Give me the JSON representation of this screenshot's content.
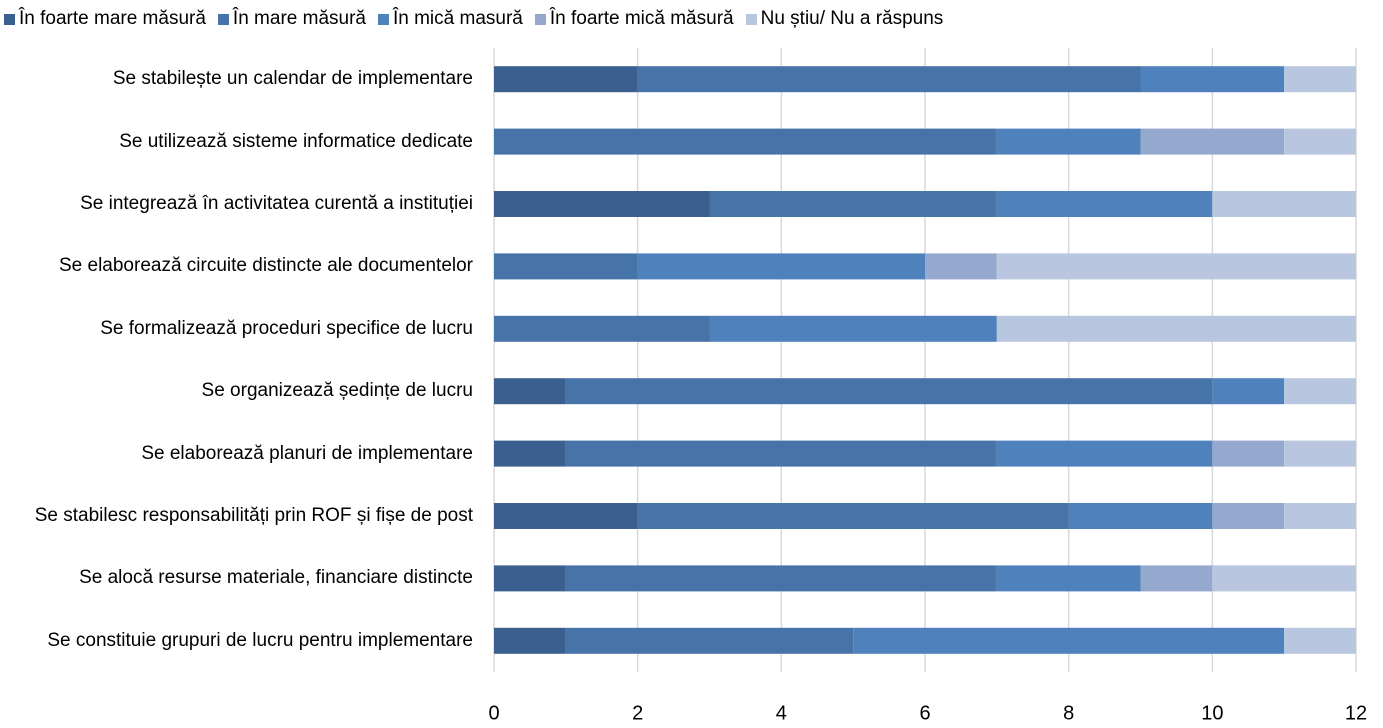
{
  "chart_data": {
    "type": "stacked-barh",
    "categories": [
      "Se stabilește un calendar de implementare",
      "Se utilizează sisteme informatice dedicate",
      "Se integrează în activitatea curentă a instituției",
      "Se elaborează circuite distincte ale documentelor",
      "Se formalizează proceduri specifice de lucru",
      "Se organizează ședințe de lucru",
      "Se elaborează planuri de implementare",
      "Se stabilesc responsabilități prin ROF și fișe de post",
      "Se alocă resurse materiale, financiare distincte",
      "Se constituie grupuri de lucru pentru implementare"
    ],
    "series": [
      {
        "name": "În foarte mare măsură",
        "color": "#3b6090",
        "values": [
          2,
          0,
          3,
          0,
          0,
          1,
          1,
          2,
          1,
          1
        ]
      },
      {
        "name": "În mare măsură",
        "color": "#4673a8",
        "values": [
          7,
          7,
          4,
          2,
          3,
          9,
          6,
          6,
          6,
          4
        ]
      },
      {
        "name": "În mică masură",
        "color": "#4f81bd",
        "values": [
          2,
          2,
          3,
          4,
          4,
          1,
          3,
          2,
          2,
          6
        ]
      },
      {
        "name": "În foarte mică măsură",
        "color": "#95a9cf",
        "values": [
          0,
          2,
          0,
          1,
          0,
          0,
          1,
          1,
          1,
          0
        ]
      },
      {
        "name": "Nu știu/ Nu a răspuns",
        "color": "#b9c6e0",
        "values": [
          1,
          1,
          2,
          5,
          5,
          1,
          1,
          1,
          2,
          1
        ]
      }
    ],
    "xlim": [
      0,
      12
    ],
    "xticks": [
      0,
      2,
      4,
      6,
      8,
      10,
      12
    ],
    "grid": true,
    "legend": "top"
  }
}
